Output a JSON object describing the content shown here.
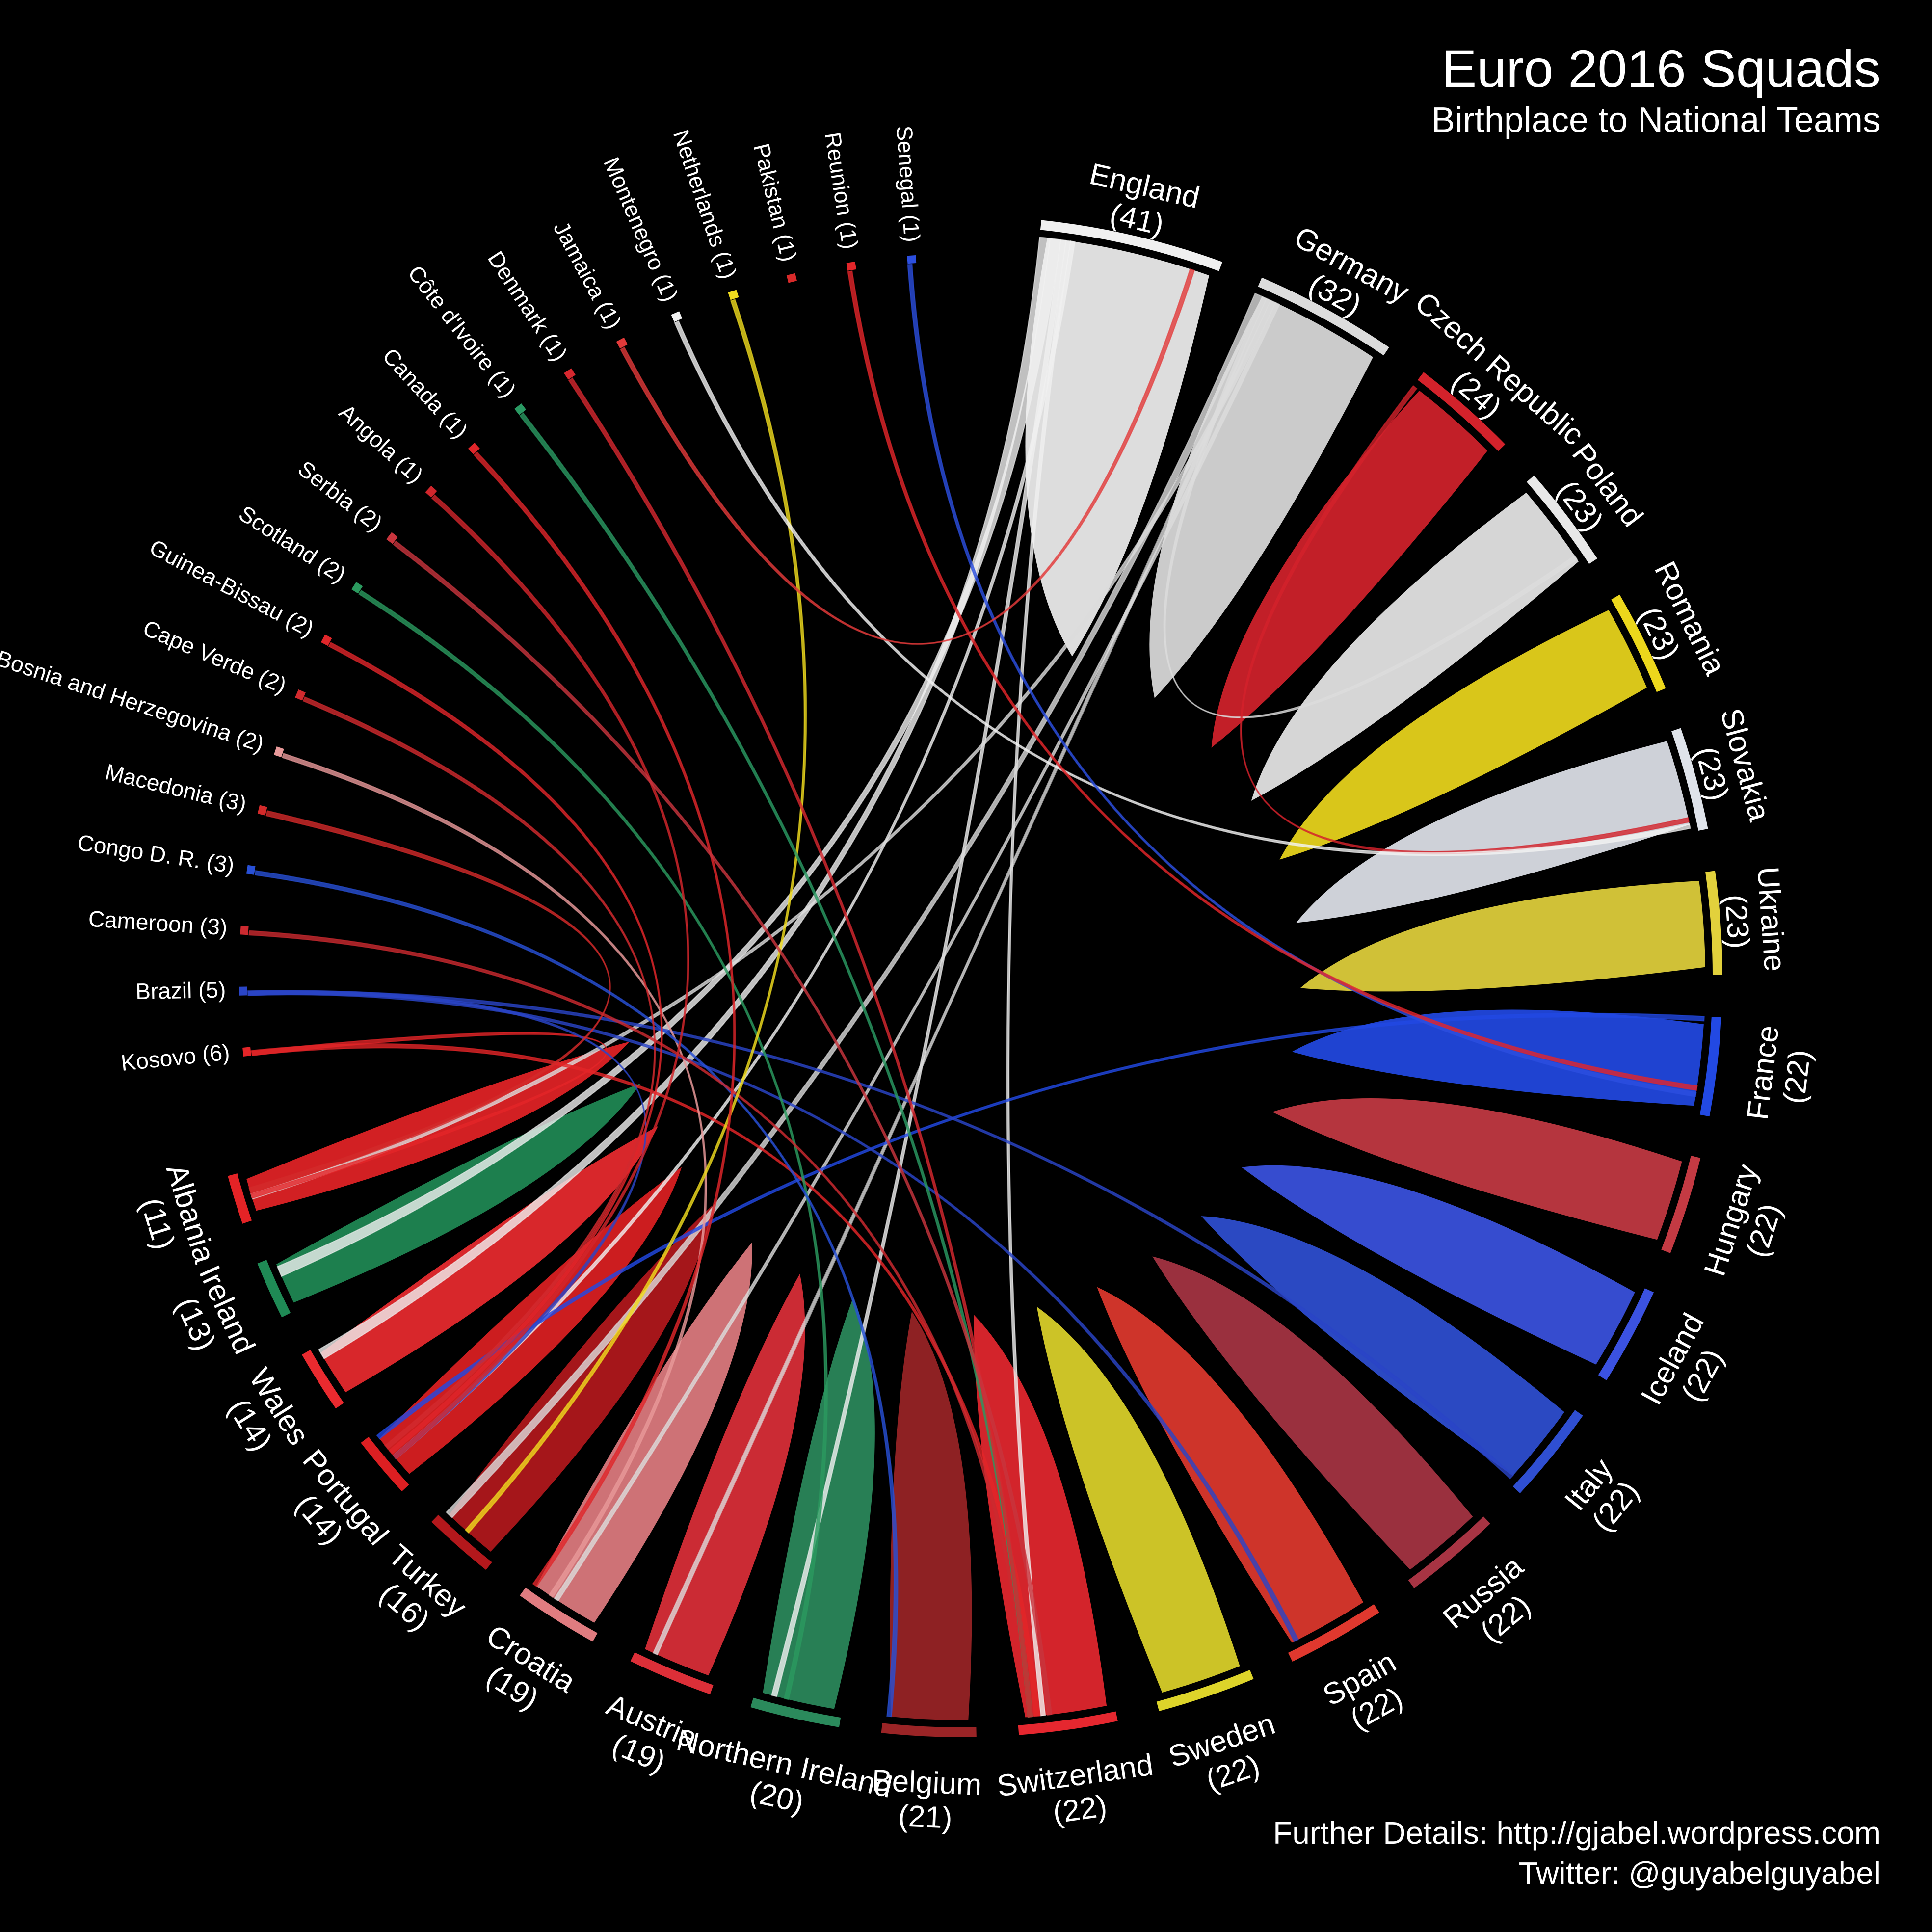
{
  "header": {
    "title": "Euro 2016 Squads",
    "subtitle": "Birthplace to National Teams"
  },
  "footer": {
    "details": "Further Details: http://gjabel.wordpress.com",
    "twitter": "Twitter: @guyabelguyabel"
  },
  "chart_data": {
    "type": "chord",
    "title": "Euro 2016 Squads",
    "subtitle": "Birthplace to National Teams",
    "sectors": [
      {
        "name": "England",
        "count": 41,
        "color": "#f0f0f0",
        "kind": "team"
      },
      {
        "name": "Germany",
        "count": 32,
        "color": "#dcdcdc",
        "kind": "team"
      },
      {
        "name": "Czech Republic",
        "count": 24,
        "color": "#d3222b",
        "kind": "team"
      },
      {
        "name": "Poland",
        "count": 23,
        "color": "#e8e8e8",
        "kind": "team"
      },
      {
        "name": "Romania",
        "count": 23,
        "color": "#ecd71c",
        "kind": "team"
      },
      {
        "name": "Slovakia",
        "count": 23,
        "color": "#dfe3ea",
        "kind": "team"
      },
      {
        "name": "Ukraine",
        "count": 23,
        "color": "#e2d13c",
        "kind": "team"
      },
      {
        "name": "France",
        "count": 22,
        "color": "#2249e3",
        "kind": "team"
      },
      {
        "name": "Hungary",
        "count": 22,
        "color": "#c43a43",
        "kind": "team"
      },
      {
        "name": "Iceland",
        "count": 22,
        "color": "#3b52e1",
        "kind": "team"
      },
      {
        "name": "Italy",
        "count": 22,
        "color": "#2f4fd2",
        "kind": "team"
      },
      {
        "name": "Russia",
        "count": 22,
        "color": "#a73443",
        "kind": "team"
      },
      {
        "name": "Spain",
        "count": 22,
        "color": "#e0382e",
        "kind": "team"
      },
      {
        "name": "Sweden",
        "count": 22,
        "color": "#ddd42a",
        "kind": "team"
      },
      {
        "name": "Switzerland",
        "count": 22,
        "color": "#e5272f",
        "kind": "team"
      },
      {
        "name": "Belgium",
        "count": 21,
        "color": "#9a2426",
        "kind": "team"
      },
      {
        "name": "Northern Ireland",
        "count": 20,
        "color": "#2b8a5c",
        "kind": "team"
      },
      {
        "name": "Austria",
        "count": 19,
        "color": "#dc2f38",
        "kind": "team"
      },
      {
        "name": "Croatia",
        "count": 19,
        "color": "#e07c80",
        "kind": "team"
      },
      {
        "name": "Turkey",
        "count": 16,
        "color": "#b3181c",
        "kind": "team"
      },
      {
        "name": "Portugal",
        "count": 14,
        "color": "#dd1f22",
        "kind": "team"
      },
      {
        "name": "Wales",
        "count": 14,
        "color": "#ea2a2f",
        "kind": "team"
      },
      {
        "name": "Ireland",
        "count": 13,
        "color": "#1f8a55",
        "kind": "team"
      },
      {
        "name": "Albania",
        "count": 11,
        "color": "#e42326",
        "kind": "team"
      },
      {
        "name": "Kosovo",
        "count": 6,
        "color": "#e42528",
        "kind": "source"
      },
      {
        "name": "Brazil",
        "count": 5,
        "color": "#2a45c7",
        "kind": "source"
      },
      {
        "name": "Cameroon",
        "count": 3,
        "color": "#cc2a30",
        "kind": "source"
      },
      {
        "name": "Congo D. R.",
        "count": 3,
        "color": "#2850d6",
        "kind": "source"
      },
      {
        "name": "Macedonia",
        "count": 3,
        "color": "#d32a2a",
        "kind": "source"
      },
      {
        "name": "Bosnia and Herzegovina",
        "count": 2,
        "color": "#e8999a",
        "kind": "source"
      },
      {
        "name": "Cape Verde",
        "count": 2,
        "color": "#d22a2e",
        "kind": "source"
      },
      {
        "name": "Guinea-Bissau",
        "count": 2,
        "color": "#e0262a",
        "kind": "source"
      },
      {
        "name": "Scotland",
        "count": 2,
        "color": "#2b9a5f",
        "kind": "source"
      },
      {
        "name": "Serbia",
        "count": 2,
        "color": "#c8353d",
        "kind": "source"
      },
      {
        "name": "Angola",
        "count": 1,
        "color": "#d2262c",
        "kind": "source"
      },
      {
        "name": "Canada",
        "count": 1,
        "color": "#e0262a",
        "kind": "source"
      },
      {
        "name": "Côte d'Ivoire",
        "count": 1,
        "color": "#2a9a63",
        "kind": "source"
      },
      {
        "name": "Denmark",
        "count": 1,
        "color": "#d6282f",
        "kind": "source"
      },
      {
        "name": "Jamaica",
        "count": 1,
        "color": "#e23a3a",
        "kind": "source"
      },
      {
        "name": "Montenegro",
        "count": 1,
        "color": "#f2f2f2",
        "kind": "source"
      },
      {
        "name": "Netherlands",
        "count": 1,
        "color": "#f0dc1e",
        "kind": "source"
      },
      {
        "name": "Pakistan",
        "count": 1,
        "color": "#d82a2a",
        "kind": "source"
      },
      {
        "name": "Reunion",
        "count": 1,
        "color": "#e3262a",
        "kind": "source"
      },
      {
        "name": "Senegal",
        "count": 1,
        "color": "#2c4fe0",
        "kind": "source"
      }
    ],
    "flows": [
      {
        "from": "England",
        "to": "Wales",
        "value": 4
      },
      {
        "from": "England",
        "to": "Ireland",
        "value": 4
      },
      {
        "from": "England",
        "to": "Northern Ireland",
        "value": 2
      },
      {
        "from": "England",
        "to": "Switzerland",
        "value": 1
      },
      {
        "from": "England",
        "to": "Portugal",
        "value": 1
      },
      {
        "from": "Germany",
        "to": "Turkey",
        "value": 3
      },
      {
        "from": "Germany",
        "to": "Poland",
        "value": 1
      },
      {
        "from": "Germany",
        "to": "Austria",
        "value": 1
      },
      {
        "from": "Germany",
        "to": "Albania",
        "value": 2
      },
      {
        "from": "Germany",
        "to": "Croatia",
        "value": 1
      },
      {
        "from": "France",
        "to": "Portugal",
        "value": 1
      },
      {
        "from": "Czech Republic",
        "to": "Slovakia",
        "value": 1
      },
      {
        "from": "Kosovo",
        "to": "Switzerland",
        "value": 2
      },
      {
        "from": "Kosovo",
        "to": "Albania",
        "value": 1
      },
      {
        "from": "Brazil",
        "to": "Portugal",
        "value": 1
      },
      {
        "from": "Brazil",
        "to": "Italy",
        "value": 1
      },
      {
        "from": "Brazil",
        "to": "Spain",
        "value": 1
      },
      {
        "from": "Macedonia",
        "to": "Albania",
        "value": 2
      },
      {
        "from": "Bosnia and Herzegovina",
        "to": "Croatia",
        "value": 1
      },
      {
        "from": "Scotland",
        "to": "Northern Ireland",
        "value": 1
      },
      {
        "from": "Congo D. R.",
        "to": "Belgium",
        "value": 1
      },
      {
        "from": "Cameroon",
        "to": "Switzerland",
        "value": 1
      },
      {
        "from": "Cape Verde",
        "to": "Portugal",
        "value": 1
      },
      {
        "from": "Guinea-Bissau",
        "to": "Portugal",
        "value": 1
      },
      {
        "from": "Netherlands",
        "to": "Turkey",
        "value": 1
      },
      {
        "from": "Montenegro",
        "to": "Slovakia",
        "value": 1
      },
      {
        "from": "Côte d'Ivoire",
        "to": "Switzerland",
        "value": 1
      },
      {
        "from": "Senegal",
        "to": "France",
        "value": 1
      },
      {
        "from": "Reunion",
        "to": "France",
        "value": 1
      },
      {
        "from": "Angola",
        "to": "Portugal",
        "value": 1
      },
      {
        "from": "Canada",
        "to": "Croatia",
        "value": 1
      },
      {
        "from": "Denmark",
        "to": "Switzerland",
        "value": 1
      },
      {
        "from": "Pakistan",
        "to": "Denmark",
        "value": 0
      },
      {
        "from": "Jamaica",
        "to": "England",
        "value": 1
      },
      {
        "from": "Serbia",
        "to": "Switzerland",
        "value": 1
      }
    ]
  }
}
